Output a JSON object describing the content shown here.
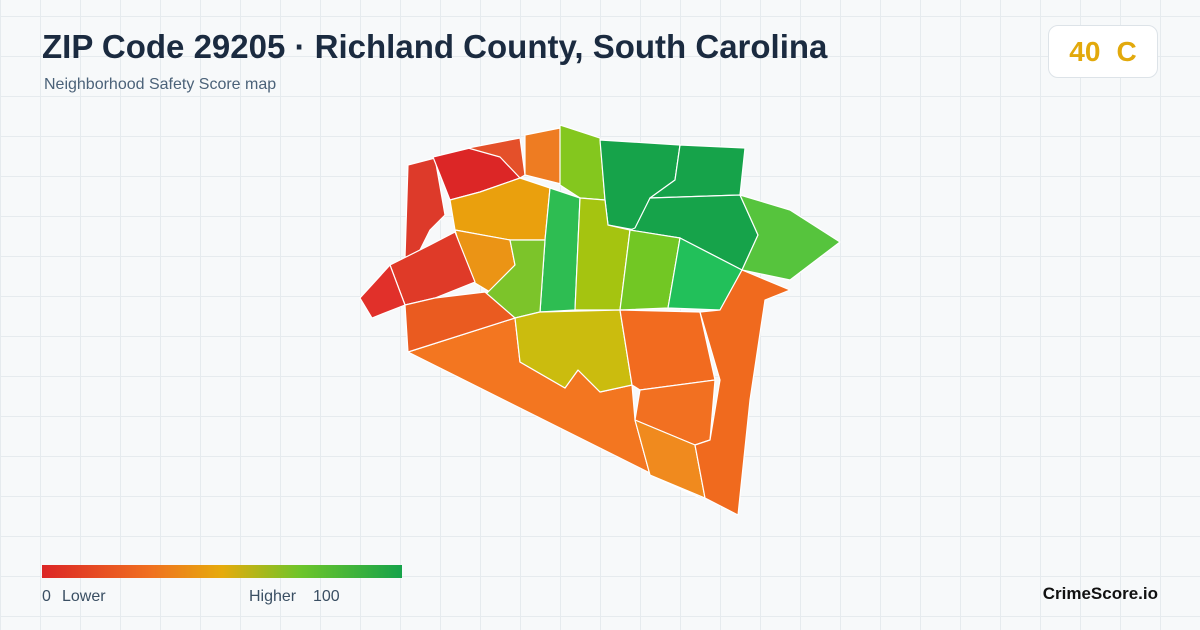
{
  "header": {
    "title": "ZIP Code 29205 · Richland County, South Carolina",
    "subtitle": "Neighborhood Safety Score map"
  },
  "score": {
    "value": 40,
    "grade": "C"
  },
  "legend": {
    "min": 0,
    "min_label": "Lower",
    "max_label": "Higher",
    "max": 100
  },
  "footer": {
    "brand": "CrimeScore.io"
  }
}
